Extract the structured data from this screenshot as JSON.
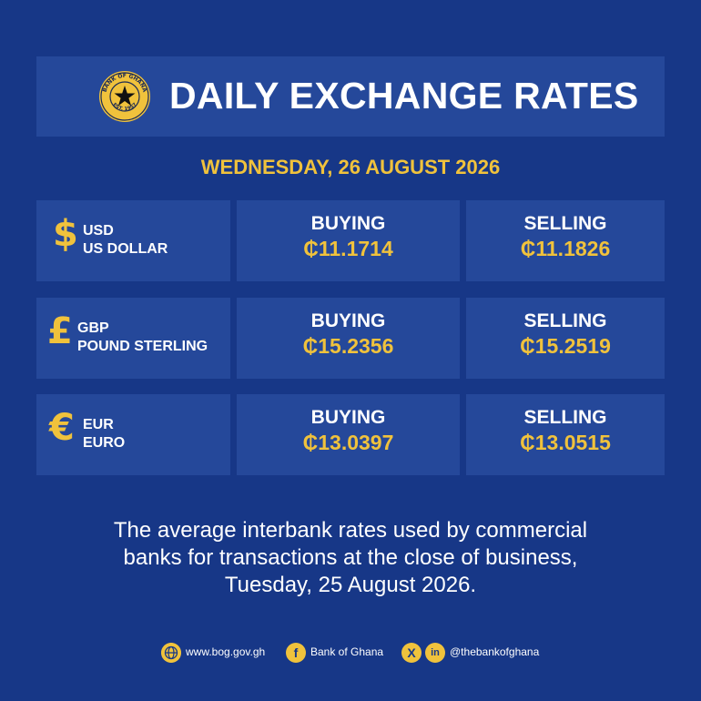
{
  "header": {
    "title": "DAILY EXCHANGE RATES",
    "seal": {
      "top_text": "BANK OF GHANA",
      "bottom_text": "EST. 1957"
    }
  },
  "date": "WEDNESDAY, 26 AUGUST 2026",
  "rates": [
    {
      "symbol": "$",
      "code": "USD",
      "name": "US DOLLAR",
      "buying_label": "BUYING",
      "buying": "₵11.1714",
      "selling_label": "SELLING",
      "selling": "₵11.1826"
    },
    {
      "symbol": "£",
      "code": "GBP",
      "name": "POUND STERLING",
      "buying_label": "BUYING",
      "buying": "₵15.2356",
      "selling_label": "SELLING",
      "selling": "₵15.2519"
    },
    {
      "symbol": "€",
      "code": "EUR",
      "name": "EURO",
      "buying_label": "BUYING",
      "buying": "₵13.0397",
      "selling_label": "SELLING",
      "selling": "₵13.0515"
    }
  ],
  "note": {
    "line1": "The average interbank rates used by commercial",
    "line2": "banks for transactions at the close of business,",
    "line3": "Tuesday, 25 August 2026."
  },
  "footer": {
    "website": "www.bog.gov.gh",
    "facebook": "Bank of Ghana",
    "social_handle": "@thebankofghana"
  },
  "colors": {
    "background": "#173787",
    "panel": "#25489a",
    "accent": "#f0c23c",
    "text": "#ffffff"
  }
}
